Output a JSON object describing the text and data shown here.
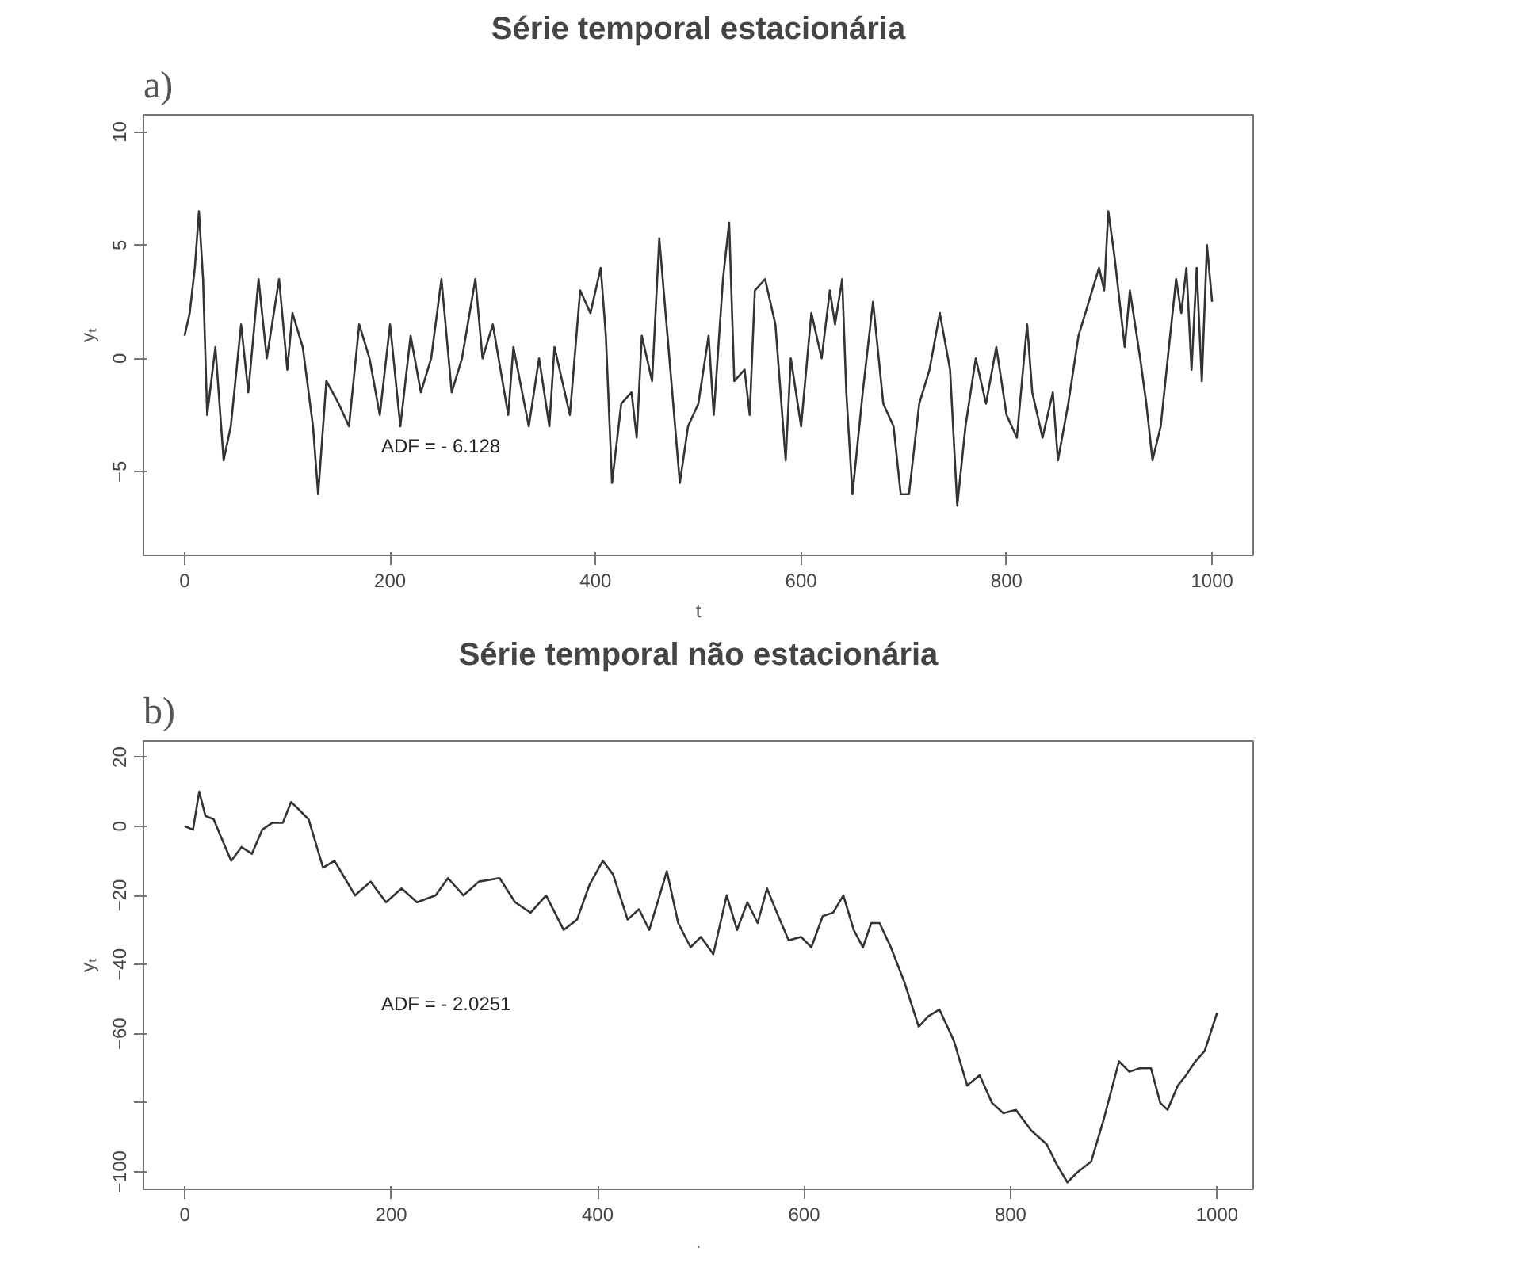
{
  "chart_data": [
    {
      "type": "line",
      "title": "Série temporal estacionária",
      "xlabel": "t",
      "ylabel": "yₜ",
      "annotations": [
        "a)",
        "ADF = - 6.128"
      ],
      "xlim": [
        -40,
        1040
      ],
      "ylim": [
        -8.7,
        10.75
      ],
      "xticks": [
        0,
        200,
        400,
        600,
        800,
        1000
      ],
      "yticks": [
        -5,
        0,
        5,
        10
      ],
      "grid": false,
      "series": [
        {
          "color": "#333333",
          "x": [
            0,
            5,
            10,
            14,
            18,
            22,
            30,
            38,
            45,
            55,
            62,
            72,
            80,
            92,
            100,
            105,
            115,
            125,
            130,
            138,
            150,
            160,
            170,
            180,
            190,
            200,
            210,
            220,
            230,
            240,
            250,
            260,
            270,
            283,
            290,
            300,
            315,
            320,
            335,
            345,
            355,
            360,
            375,
            385,
            395,
            405,
            410,
            416,
            425,
            435,
            440,
            445,
            455,
            462,
            470,
            482,
            490,
            500,
            510,
            515,
            524,
            530,
            535,
            545,
            550,
            555,
            565,
            575,
            585,
            590,
            600,
            610,
            620,
            628,
            633,
            640,
            644,
            650,
            660,
            670,
            680,
            690,
            697,
            705,
            715,
            725,
            735,
            745,
            752,
            760,
            770,
            780,
            790,
            800,
            810,
            820,
            825,
            835,
            845,
            850,
            860,
            870,
            880,
            890,
            895,
            899,
            905,
            915,
            920,
            930,
            936,
            942,
            950,
            958,
            965,
            970,
            975,
            980,
            985,
            990,
            995,
            1000
          ],
          "values": [
            1,
            2,
            4,
            6.5,
            3.5,
            -2.5,
            0.5,
            -4.5,
            -3,
            1.5,
            -1.5,
            3.5,
            0,
            3.5,
            -0.5,
            2,
            0.5,
            -3,
            -6,
            -1,
            -2,
            -3,
            1.5,
            0,
            -2.5,
            1.5,
            -3,
            1,
            -1.5,
            0,
            3.5,
            -1.5,
            0,
            3.5,
            0,
            1.5,
            -2.5,
            0.5,
            -3,
            0,
            -3,
            0.5,
            -2.5,
            3,
            2,
            4,
            1,
            -5.5,
            -2,
            -1.5,
            -3.5,
            1,
            -1,
            5.3,
            1,
            -5.5,
            -3,
            -2,
            1,
            -2.5,
            3.5,
            6,
            -1,
            -0.5,
            -2.5,
            3,
            3.5,
            1.5,
            -4.5,
            0,
            -3,
            2,
            0,
            3,
            1.5,
            3.5,
            -1.5,
            -6,
            -1.5,
            2.5,
            -2,
            -3,
            -6,
            -6,
            -2,
            -0.5,
            2,
            -0.5,
            -6.5,
            -3,
            0,
            -2,
            0.5,
            -2.5,
            -3.5,
            1.5,
            -1.5,
            -3.5,
            -1.5,
            -4.5,
            -2,
            1,
            2.5,
            4,
            3,
            6.5,
            4.5,
            0.5,
            3,
            0,
            -2,
            -4.5,
            -3,
            0.5,
            3.5,
            2,
            4,
            -0.5,
            4,
            -1,
            5,
            2.5
          ]
        }
      ]
    },
    {
      "type": "line",
      "title": "Série temporal não estacionária",
      "xlabel": ".",
      "ylabel": "yₜ",
      "annotations": [
        "b)",
        "ADF = - 2.0251"
      ],
      "xlim": [
        -40,
        1035
      ],
      "ylim": [
        -105,
        24.7
      ],
      "xticks": [
        0,
        200,
        400,
        600,
        800,
        1000
      ],
      "yticks": [
        20,
        0,
        -20,
        -40,
        -60,
        {
          "value": -80,
          "label": null
        },
        -100
      ],
      "grid": false,
      "series": [
        {
          "color": "#333333",
          "x": [
            0,
            8,
            14,
            20,
            28,
            35,
            45,
            55,
            65,
            75,
            85,
            95,
            103,
            110,
            120,
            134,
            145,
            155,
            165,
            180,
            195,
            210,
            225,
            243,
            255,
            270,
            285,
            305,
            320,
            335,
            350,
            367,
            380,
            392,
            405,
            415,
            429,
            440,
            450,
            458,
            467,
            478,
            490,
            500,
            512,
            525,
            535,
            545,
            555,
            564,
            575,
            585,
            597,
            607,
            618,
            628,
            638,
            648,
            657,
            665,
            673,
            684,
            697,
            711,
            720,
            731,
            745,
            758,
            770,
            782,
            793,
            805,
            820,
            835,
            845,
            855,
            865,
            878,
            890,
            905,
            915,
            925,
            936,
            945,
            952,
            962,
            970,
            979,
            988,
            1000
          ],
          "values": [
            0,
            -1,
            10,
            3,
            2,
            -3,
            -10,
            -6,
            -8,
            -1,
            1,
            1,
            7,
            5,
            2,
            -12,
            -10,
            -15,
            -20,
            -16,
            -22,
            -18,
            -22,
            -20,
            -15,
            -20,
            -16,
            -15,
            -22,
            -25,
            -20,
            -30,
            -27,
            -17,
            -10,
            -14,
            -27,
            -24,
            -30,
            -22,
            -13,
            -28,
            -35,
            -32,
            -37,
            -20,
            -30,
            -22,
            -28,
            -18,
            -26,
            -33,
            -32,
            -35,
            -26,
            -25,
            -20,
            -30,
            -35,
            -28,
            -28,
            -35,
            -45,
            -58,
            -55,
            -53,
            -62,
            -75,
            -72,
            -80,
            -83,
            -82,
            -88,
            -92,
            -98,
            -103,
            -100,
            -97,
            -85,
            -68,
            -71,
            -70,
            -70,
            -80,
            -82,
            -75,
            -72,
            -68,
            -65,
            -54
          ]
        }
      ]
    }
  ]
}
